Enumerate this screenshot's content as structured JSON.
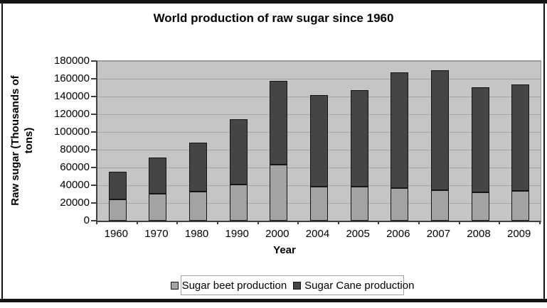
{
  "title": "World production of raw sugar since 1960",
  "chart_data": {
    "type": "bar",
    "stacked": true,
    "title": "World production of raw sugar since 1960",
    "xlabel": "Year",
    "ylabel": "Raw sugar (Thousands of tons)",
    "ylabel_lines": [
      "Raw sugar (Thousands of",
      "tons)"
    ],
    "categories": [
      "1960",
      "1970",
      "1980",
      "1990",
      "2000",
      "2004",
      "2005",
      "2006",
      "2007",
      "2008",
      "2009"
    ],
    "series": [
      {
        "name": "Sugar beet production",
        "color": "#a3a3a3",
        "values": [
          24000,
          30000,
          33000,
          41000,
          63000,
          38000,
          38500,
          36500,
          34000,
          32000,
          33500
        ]
      },
      {
        "name": "Sugar Cane production",
        "color": "#454545",
        "values": [
          31500,
          41000,
          55000,
          73500,
          94000,
          103000,
          109000,
          130500,
          135000,
          118000,
          120000
        ]
      }
    ],
    "stack_totals": [
      55500,
      71000,
      88000,
      114500,
      157000,
      141000,
      147500,
      167000,
      169000,
      150000,
      153500
    ],
    "ylim": [
      0,
      180000
    ],
    "ytick_step": 20000,
    "yticks": [
      0,
      20000,
      40000,
      60000,
      80000,
      100000,
      120000,
      140000,
      160000,
      180000
    ],
    "ytick_labels": [
      "0",
      "20000",
      "40000",
      "60000",
      "80000",
      "100000",
      "120000",
      "140000",
      "160000",
      "180000"
    ],
    "grid": true,
    "grid_color": "#a6a6a6",
    "plot_bg_color": "#c5c5c5",
    "legend_position": "bottom",
    "legend_labels": [
      "Sugar beet production",
      "Sugar Cane production"
    ]
  }
}
